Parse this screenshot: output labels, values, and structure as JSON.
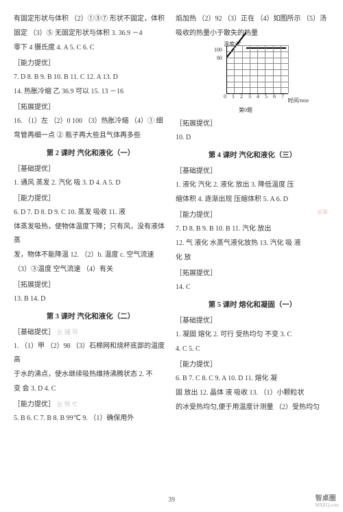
{
  "left_column": {
    "line1": "有固定形状与体积 （2）①③⑦ 形状不固定，体积",
    "line2": "固定 （3）⑤ 无固定形状与体积 3. 36.9 －4",
    "line3": "零下 4 摄氏度 4. A 5. C 6. C",
    "section1_label": "［能力提优］",
    "line4": "7. D 8. B 9. B 10. B 11. C 12. A 13. D",
    "line5": "14. 热胀冷缩 乙 36.9 可以 15. 13 －16",
    "section2_label": "［拓展提优］",
    "line6": "16. （1）左 （2）0 100 （3）热胀冷缩 （4）① 细",
    "line7": "弯管再细一点 ② 瓶子再大些且气体再多些",
    "title1": "第 2 课时 汽化和液化（一）",
    "section3_label": "［基础提优］",
    "line8": "1. 通风 蒸发 2. 汽化 吸 3. D 4. A 5. D",
    "section4_label": "［能力提优］",
    "line9": "6. D 7. D 8. D 9. C 10. 蒸发 吸收 11. 液",
    "line10": "体蒸发吸热，使物体温度下降；只有风，没有液体蒸",
    "line11": "发，物体不能降温 12. （2）b. 温度 c. 空气流速",
    "line12": "（3）③温度 空气流速 （4）有关",
    "section5_label": "［拓展提优］",
    "line13": "13. B 14. D",
    "title2": "第 3 课时 汽化和液化（二）",
    "section6_label": "［基础提优］",
    "faint1": "业 辅 导",
    "line14": "1. （1）甲 （2）98 （3）石棉网和烧杯底部的温度高",
    "line15": "于水的沸点，使水继续吸热维持沸腾状态 2. 不",
    "line16": "变 会 3. D 4. C",
    "section7_label": "［能力提优］",
    "faint2": "业 帮 忙",
    "line17": "5. B 6. C 7. B 8. B 99℃ 9. （1）确保用外"
  },
  "right_column": {
    "line1": "焰加热 （2）92 （3）正在 （4）如图所示 （5）汤",
    "line2": "吸收的热量小于散失的热量",
    "chart": {
      "y_title": "温度/℃",
      "x_title": "时间/min",
      "y_labels": [
        "100",
        "80"
      ],
      "x_labels": [
        "0",
        "1",
        "2",
        "3",
        "4",
        "5",
        "6",
        "7"
      ],
      "caption": "第9题"
    },
    "section1_label": "［拓展提优］",
    "line3": "10. D",
    "title1": "第 4 课时 汽化和液化（三）",
    "section2_label": "［基础提优］",
    "line4": "1. 液化 汽化 2. 液化 放出 3. 降低温度 压",
    "line5": "缩体积 4. 逐渐出现 压缩体积 5. A 6. D",
    "section3_label": "［能力提优］",
    "line6": "7. D 8. B 9. B 10. B 11. 汽化 放出",
    "line7": "12. 气 液化 水蒸气液化放热 13. 汽化 吸 液",
    "line8": "化 放",
    "section4_label": "［拓展提优］",
    "line9": "14. C",
    "title2": "第 5 课时 熔化和凝固（一）",
    "section5_label": "［基础提优］",
    "line10": "1. 凝固 熔化 2. 可行 受热均匀 不变 3. C",
    "line11": "4. C 5. C",
    "section6_label": "［能力提优］",
    "line12": "6. B 7. C 8. C 9. A 10. D 11. 熔化 凝",
    "line13": "固 放出 12. 晶体 液 吸收 13. （1）小颗粒状",
    "line14": "的冰受热均匀,便于用温度计测量 （2）受热均匀"
  },
  "page_number": "39",
  "watermark": "智桌圈",
  "watermark_url": "MXEQ.com",
  "stamp": "答案"
}
